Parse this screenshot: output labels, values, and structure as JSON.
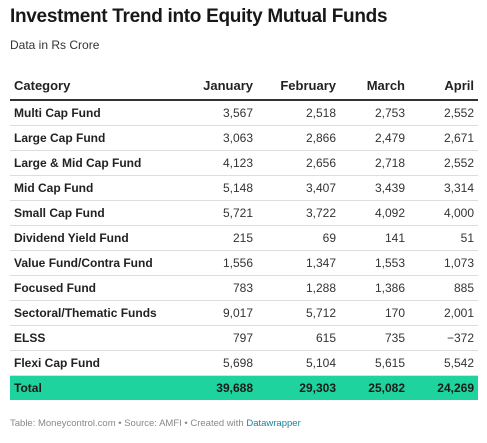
{
  "title": "Investment Trend into Equity Mutual Funds",
  "subtitle": "Data in Rs Crore",
  "table": {
    "headers": [
      "Category",
      "January",
      "February",
      "March",
      "April"
    ],
    "rows": [
      {
        "category": "Multi Cap Fund",
        "values": [
          "3,567",
          "2,518",
          "2,753",
          "2,552"
        ]
      },
      {
        "category": "Large Cap Fund",
        "values": [
          "3,063",
          "2,866",
          "2,479",
          "2,671"
        ]
      },
      {
        "category": "Large & Mid Cap Fund",
        "values": [
          "4,123",
          "2,656",
          "2,718",
          "2,552"
        ]
      },
      {
        "category": "Mid Cap Fund",
        "values": [
          "5,148",
          "3,407",
          "3,439",
          "3,314"
        ]
      },
      {
        "category": "Small Cap Fund",
        "values": [
          "5,721",
          "3,722",
          "4,092",
          "4,000"
        ]
      },
      {
        "category": "Dividend Yield Fund",
        "values": [
          "215",
          "69",
          "141",
          "51"
        ]
      },
      {
        "category": "Value Fund/Contra Fund",
        "values": [
          "1,556",
          "1,347",
          "1,553",
          "1,073"
        ]
      },
      {
        "category": "Focused Fund",
        "values": [
          "783",
          "1,288",
          "1,386",
          "885"
        ]
      },
      {
        "category": "Sectoral/Thematic Funds",
        "values": [
          "9,017",
          "5,712",
          "170",
          "2,001"
        ]
      },
      {
        "category": "ELSS",
        "values": [
          "797",
          "615",
          "735",
          "−372"
        ]
      },
      {
        "category": "Flexi Cap Fund",
        "values": [
          "5,698",
          "5,104",
          "5,615",
          "5,542"
        ]
      }
    ],
    "total": {
      "category": "Total",
      "values": [
        "39,688",
        "29,303",
        "25,082",
        "24,269"
      ]
    }
  },
  "footer": {
    "text": "Table: Moneycontrol.com • Source: AMFI • Created with ",
    "link": "Datawrapper"
  },
  "colors": {
    "total_row_bg": "#1ed39d",
    "link": "#1d81a2"
  }
}
